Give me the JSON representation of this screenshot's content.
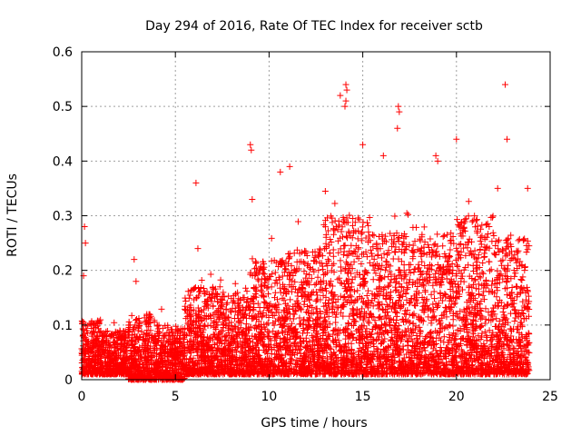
{
  "chart_data": {
    "type": "scatter",
    "title": "Day 294 of 2016, Rate Of TEC Index for receiver sctb",
    "xlabel": "GPS time / hours",
    "ylabel": "ROTI / TECUs",
    "xlim": [
      0,
      25
    ],
    "ylim": [
      0,
      0.6
    ],
    "x_ticks": [
      0,
      5,
      10,
      15,
      20,
      25
    ],
    "y_ticks": [
      0,
      0.1,
      0.2,
      0.3,
      0.4,
      0.5,
      0.6
    ],
    "x_tick_labels": [
      "0",
      "5",
      "10",
      "15",
      "20",
      "25"
    ],
    "y_tick_labels": [
      "0",
      "0.1",
      "0.2",
      "0.3",
      "0.4",
      "0.5",
      "0.6"
    ],
    "grid": true,
    "marker": "+",
    "series": [
      {
        "name": "ROTI",
        "color": "#ff0000",
        "notable_points": [
          {
            "x": 0.15,
            "y": 0.28
          },
          {
            "x": 0.2,
            "y": 0.25
          },
          {
            "x": 0.1,
            "y": 0.19
          },
          {
            "x": 2.8,
            "y": 0.22
          },
          {
            "x": 2.9,
            "y": 0.18
          },
          {
            "x": 6.1,
            "y": 0.36
          },
          {
            "x": 6.2,
            "y": 0.24
          },
          {
            "x": 9.0,
            "y": 0.43
          },
          {
            "x": 9.05,
            "y": 0.42
          },
          {
            "x": 9.1,
            "y": 0.33
          },
          {
            "x": 11.1,
            "y": 0.39
          },
          {
            "x": 10.6,
            "y": 0.38
          },
          {
            "x": 13.8,
            "y": 0.52
          },
          {
            "x": 14.1,
            "y": 0.54
          },
          {
            "x": 14.15,
            "y": 0.53
          },
          {
            "x": 14.1,
            "y": 0.51
          },
          {
            "x": 14.05,
            "y": 0.5
          },
          {
            "x": 15.0,
            "y": 0.43
          },
          {
            "x": 16.1,
            "y": 0.41
          },
          {
            "x": 16.9,
            "y": 0.5
          },
          {
            "x": 16.95,
            "y": 0.49
          },
          {
            "x": 16.85,
            "y": 0.46
          },
          {
            "x": 18.9,
            "y": 0.41
          },
          {
            "x": 19.0,
            "y": 0.4
          },
          {
            "x": 20.0,
            "y": 0.44
          },
          {
            "x": 22.6,
            "y": 0.54
          },
          {
            "x": 22.7,
            "y": 0.44
          },
          {
            "x": 22.2,
            "y": 0.35
          },
          {
            "x": 23.8,
            "y": 0.35
          }
        ],
        "baseline_envelope": [
          {
            "x0": 0,
            "x1": 1,
            "ymin": 0.01,
            "ymax": 0.11
          },
          {
            "x0": 1,
            "x1": 2.5,
            "ymin": 0.01,
            "ymax": 0.09
          },
          {
            "x0": 2.5,
            "x1": 4,
            "ymin": 0.0,
            "ymax": 0.12
          },
          {
            "x0": 4,
            "x1": 5.5,
            "ymin": 0.0,
            "ymax": 0.1
          },
          {
            "x0": 5.5,
            "x1": 7.5,
            "ymin": 0.01,
            "ymax": 0.17
          },
          {
            "x0": 7.5,
            "x1": 9,
            "ymin": 0.01,
            "ymax": 0.16
          },
          {
            "x0": 9,
            "x1": 11,
            "ymin": 0.01,
            "ymax": 0.22
          },
          {
            "x0": 11,
            "x1": 13,
            "ymin": 0.01,
            "ymax": 0.24
          },
          {
            "x0": 13,
            "x1": 15.5,
            "ymin": 0.01,
            "ymax": 0.3
          },
          {
            "x0": 15.5,
            "x1": 18,
            "ymin": 0.01,
            "ymax": 0.27
          },
          {
            "x0": 18,
            "x1": 20,
            "ymin": 0.01,
            "ymax": 0.27
          },
          {
            "x0": 20,
            "x1": 22,
            "ymin": 0.01,
            "ymax": 0.3
          },
          {
            "x0": 22,
            "x1": 23.9,
            "ymin": 0.01,
            "ymax": 0.26
          }
        ]
      }
    ]
  }
}
